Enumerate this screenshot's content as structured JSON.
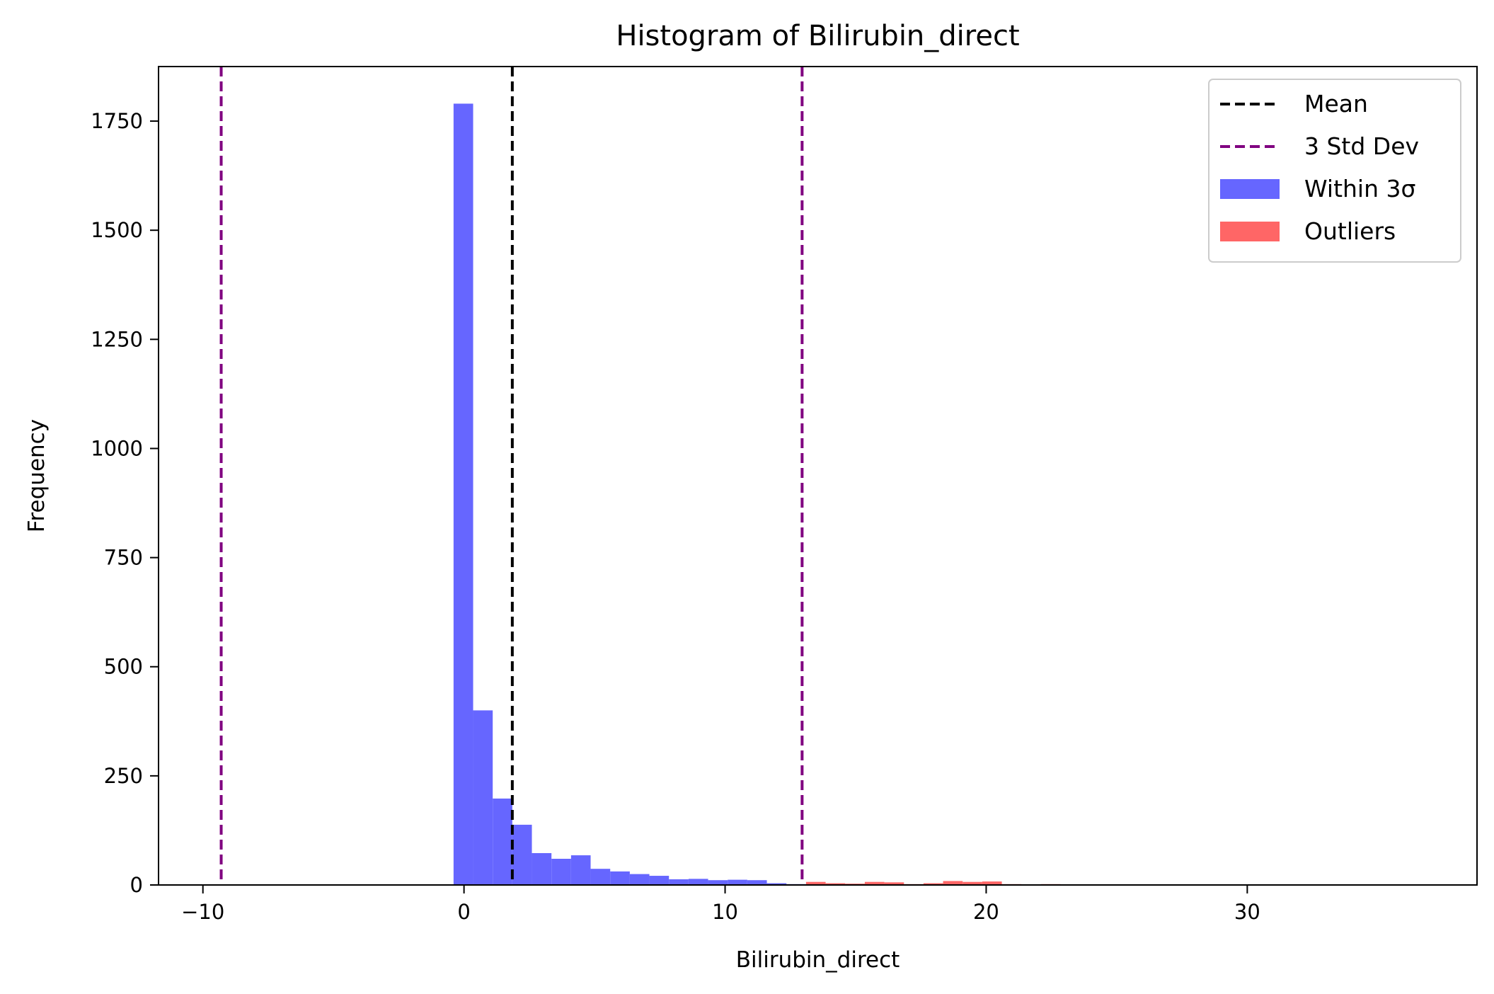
{
  "chart_data": {
    "type": "bar",
    "title": "Histogram of Bilirubin_direct",
    "xlabel": "Bilirubin_direct",
    "ylabel": "Frequency",
    "xlim": [
      -11.7,
      38.8
    ],
    "ylim": [
      0,
      1875
    ],
    "xticks": [
      -10,
      0,
      10,
      20,
      30
    ],
    "xtick_labels": [
      "−10",
      "0",
      "10",
      "20",
      "30"
    ],
    "yticks": [
      0,
      250,
      500,
      750,
      1000,
      1250,
      1500,
      1750
    ],
    "ytick_labels": [
      "0",
      "250",
      "500",
      "750",
      "1000",
      "1250",
      "1500",
      "1750"
    ],
    "grid": false,
    "legend_position": "top-right",
    "colors": {
      "within": "#6666ff",
      "outliers": "#ff6666",
      "mean_line": "#000000",
      "std_line": "#800080"
    },
    "mean": 1.85,
    "std_lines": [
      -9.3,
      12.95
    ],
    "series": [
      {
        "name": "Within 3σ",
        "bin_width": 0.75,
        "bins": [
          [
            -0.4,
            1790
          ],
          [
            0.35,
            400
          ],
          [
            1.1,
            198
          ],
          [
            1.85,
            138
          ],
          [
            2.6,
            73
          ],
          [
            3.35,
            60
          ],
          [
            4.1,
            68
          ],
          [
            4.85,
            37
          ],
          [
            5.6,
            31
          ],
          [
            6.35,
            25
          ],
          [
            7.1,
            21
          ],
          [
            7.85,
            13
          ],
          [
            8.6,
            14
          ],
          [
            9.35,
            11
          ],
          [
            10.1,
            12
          ],
          [
            10.85,
            11
          ],
          [
            11.6,
            4
          ],
          [
            12.35,
            2
          ]
        ]
      },
      {
        "name": "Outliers",
        "bin_width": 0.75,
        "bins": [
          [
            13.1,
            7
          ],
          [
            13.85,
            4
          ],
          [
            14.6,
            3
          ],
          [
            15.35,
            7
          ],
          [
            16.1,
            6
          ],
          [
            16.85,
            2
          ],
          [
            17.6,
            4
          ],
          [
            18.35,
            9
          ],
          [
            19.1,
            7
          ],
          [
            19.85,
            8
          ],
          [
            20.6,
            2
          ],
          [
            21.35,
            1
          ],
          [
            22.1,
            2
          ]
        ]
      }
    ],
    "legend": [
      {
        "label": "Mean",
        "kind": "dashed",
        "color": "#000000"
      },
      {
        "label": "3 Std Dev",
        "kind": "dashed",
        "color": "#800080"
      },
      {
        "label": "Within 3σ",
        "kind": "patch",
        "color": "#6666ff"
      },
      {
        "label": "Outliers",
        "kind": "patch",
        "color": "#ff6666"
      }
    ]
  }
}
